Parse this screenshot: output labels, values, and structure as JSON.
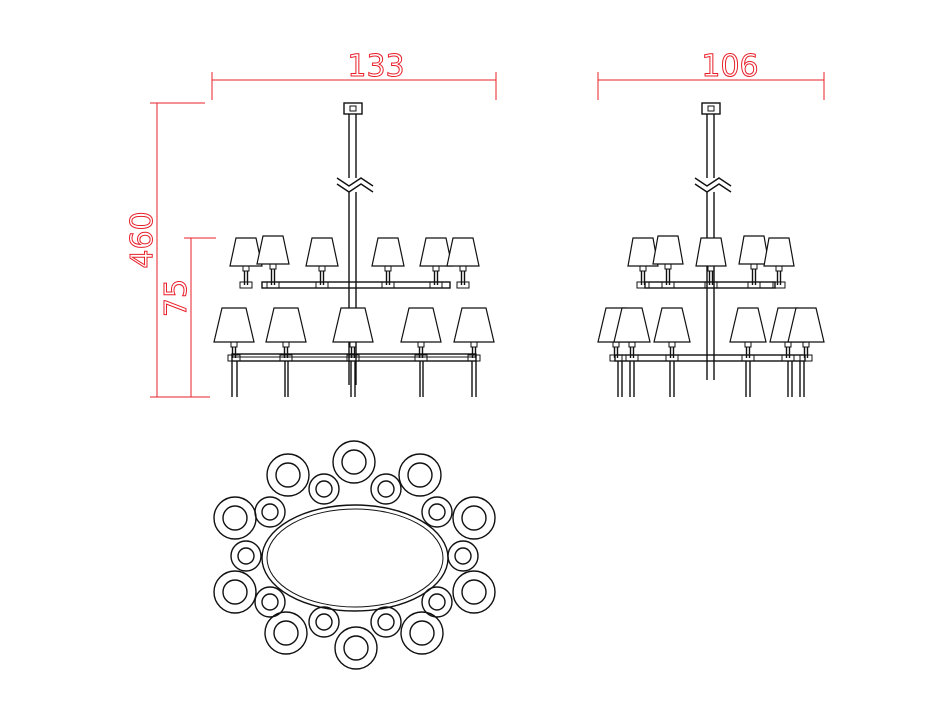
{
  "drawing": {
    "dimensions": {
      "front_width": "133",
      "side_width": "106",
      "overall_height": "460",
      "body_height": "75"
    },
    "colors": {
      "dimension": "#e8202a",
      "line": "#111111",
      "background": "#ffffff"
    }
  }
}
